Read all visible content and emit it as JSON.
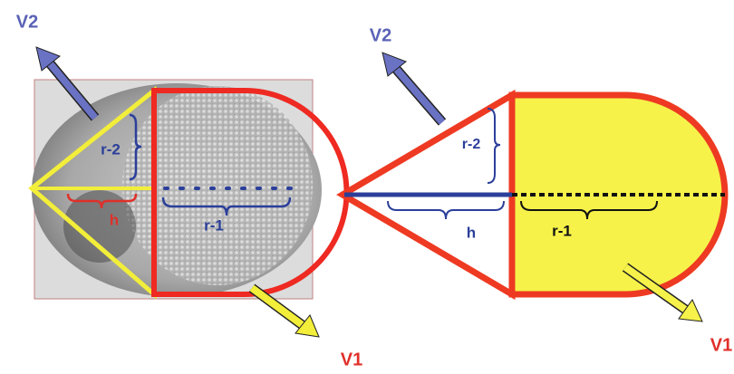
{
  "left": {
    "v2": "V2",
    "r2": "r-2",
    "h": "h",
    "r1": "r-1",
    "v1": "V1"
  },
  "right": {
    "v2": "V2",
    "r2": "r-2",
    "h": "h",
    "r1": "r-1",
    "v1": "V1"
  }
}
